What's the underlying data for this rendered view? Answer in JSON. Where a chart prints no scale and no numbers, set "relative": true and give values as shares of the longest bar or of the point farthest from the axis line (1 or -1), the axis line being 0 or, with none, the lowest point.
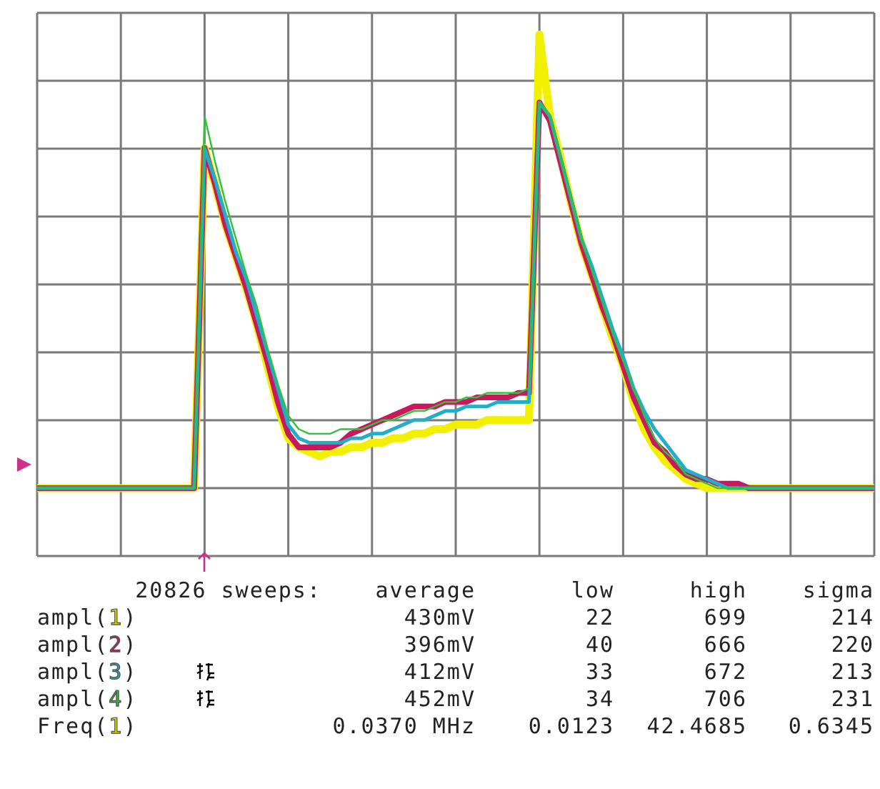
{
  "chart_data": {
    "type": "line",
    "relative": true,
    "grid": true,
    "categories": [
      null,
      null,
      null,
      null,
      null,
      null,
      null,
      null,
      null,
      null,
      null,
      null,
      null,
      null,
      null,
      null,
      null,
      null,
      null,
      null,
      null,
      null,
      null,
      null,
      null,
      null,
      null,
      null,
      null,
      null,
      null,
      null,
      null,
      null,
      null,
      null,
      null,
      null,
      null,
      null,
      null,
      null,
      null,
      null,
      null,
      null,
      null,
      null,
      null,
      null,
      null,
      null,
      null,
      null,
      null,
      null,
      null,
      null,
      null,
      null,
      null,
      null,
      null,
      null,
      null,
      null,
      null,
      null,
      null,
      null,
      null,
      null,
      null,
      null,
      null,
      null,
      null,
      null,
      null,
      null,
      null
    ],
    "series": [
      {
        "color": "#f2f000",
        "values": [
          0,
          0,
          0,
          0,
          0,
          0,
          0,
          0,
          0,
          0,
          0,
          0,
          0,
          0,
          0,
          0,
          0.75,
          0.67,
          0.58,
          0.51,
          0.44,
          0.36,
          0.27,
          0.18,
          0.11,
          0.09,
          0.08,
          0.07,
          0.08,
          0.08,
          0.09,
          0.09,
          0.1,
          0.1,
          0.11,
          0.11,
          0.12,
          0.12,
          0.13,
          0.13,
          0.14,
          0.14,
          0.14,
          0.15,
          0.15,
          0.15,
          0.15,
          0.15,
          1,
          0.82,
          0.73,
          0.63,
          0.54,
          0.47,
          0.4,
          0.33,
          0.27,
          0.19,
          0.13,
          0.09,
          0.06,
          0.04,
          0.02,
          0.01,
          0,
          0,
          0,
          0,
          0,
          0,
          0,
          0,
          0,
          0,
          0,
          0,
          0,
          0,
          0,
          0,
          0
        ]
      },
      {
        "color": "#c8185e",
        "values": [
          0,
          0,
          0,
          0,
          0,
          0,
          0,
          0,
          0,
          0,
          0,
          0,
          0,
          0,
          0,
          0,
          0.75,
          0.67,
          0.58,
          0.51,
          0.44,
          0.36,
          0.28,
          0.19,
          0.12,
          0.09,
          0.09,
          0.09,
          0.09,
          0.1,
          0.12,
          0.13,
          0.14,
          0.15,
          0.16,
          0.17,
          0.18,
          0.18,
          0.18,
          0.19,
          0.19,
          0.19,
          0.2,
          0.2,
          0.2,
          0.2,
          0.21,
          0.21,
          0.85,
          0.81,
          0.72,
          0.63,
          0.54,
          0.47,
          0.4,
          0.34,
          0.27,
          0.2,
          0.15,
          0.1,
          0.08,
          0.05,
          0.03,
          0.02,
          0.02,
          0.01,
          0.01,
          0.01,
          0,
          0,
          0,
          0,
          0,
          0,
          0,
          0,
          0,
          0,
          0,
          0,
          0
        ]
      },
      {
        "color": "#22aec8",
        "values": [
          0,
          0,
          0,
          0,
          0,
          0,
          0,
          0,
          0,
          0,
          0,
          0,
          0,
          0,
          0,
          0,
          0.75,
          0.68,
          0.6,
          0.52,
          0.46,
          0.38,
          0.3,
          0.22,
          0.14,
          0.11,
          0.1,
          0.1,
          0.1,
          0.1,
          0.11,
          0.11,
          0.12,
          0.12,
          0.13,
          0.14,
          0.15,
          0.15,
          0.16,
          0.17,
          0.17,
          0.18,
          0.18,
          0.18,
          0.19,
          0.19,
          0.19,
          0.19,
          0.85,
          0.82,
          0.73,
          0.64,
          0.55,
          0.49,
          0.42,
          0.35,
          0.29,
          0.22,
          0.17,
          0.13,
          0.1,
          0.07,
          0.04,
          0.03,
          0.02,
          0.01,
          0,
          0,
          0,
          0,
          0,
          0,
          0,
          0,
          0,
          0,
          0,
          0,
          0,
          0,
          0
        ]
      },
      {
        "color": "#2fc23a",
        "values": [
          0,
          0,
          0,
          0,
          0,
          0,
          0,
          0,
          0,
          0,
          0,
          0,
          0,
          0,
          0,
          0,
          0.82,
          0.72,
          0.63,
          0.55,
          0.47,
          0.4,
          0.31,
          0.23,
          0.16,
          0.13,
          0.12,
          0.12,
          0.12,
          0.13,
          0.13,
          0.13,
          0.14,
          0.15,
          0.15,
          0.16,
          0.17,
          0.17,
          0.18,
          0.19,
          0.19,
          0.2,
          0.2,
          0.21,
          0.21,
          0.21,
          0.21,
          0.22,
          0.85,
          0.82,
          0.73,
          0.64,
          0.55,
          0.48,
          0.41,
          0.34,
          0.28,
          0.22,
          0.16,
          0.11,
          0.08,
          0.06,
          0.03,
          0.02,
          0.01,
          0,
          0,
          0,
          0,
          0,
          0,
          0,
          0,
          0,
          0,
          0,
          0,
          0,
          0,
          0,
          0
        ]
      }
    ],
    "annotations": [
      "20826 sweeps:\taverage\tlow\thigh\tsigma",
      "ampl(1)\t430mV\t22\t699\t214",
      "ampl(2)\t396mV\t40\t666\t220",
      "ampl(3)\t412mV\t33\t672\t213",
      "ampl(4)\t452mV\t34\t706\t231",
      "Freq(1)\t0.0370 MHz\t0.0123\t42.4685\t0.6345"
    ]
  }
}
